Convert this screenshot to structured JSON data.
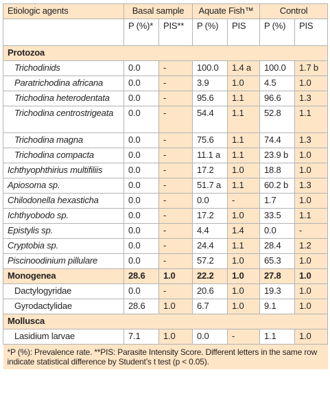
{
  "header": {
    "col0": "Etiologic agents",
    "groups": [
      "Basal sample",
      "Aquate Fish™",
      "Control"
    ],
    "sub": [
      "P (%)*",
      "PIS**",
      "P (%)",
      "PIS",
      "P (%)",
      "PIS"
    ]
  },
  "rows": [
    {
      "type": "cat",
      "label": "Protozoa"
    },
    {
      "type": "data",
      "label": "Trichodinids",
      "italic": true,
      "indent": true,
      "vals": [
        "0.0",
        "-",
        "100.0",
        "1.4 a",
        "100.0",
        "1.7 b"
      ]
    },
    {
      "type": "data",
      "label": "Paratrichodina africana",
      "italic": true,
      "indent": true,
      "vals": [
        "0.0",
        "-",
        "3.9",
        "1.0",
        "4.5",
        "1.0"
      ]
    },
    {
      "type": "data",
      "label": "Trichodina heterodentata",
      "italic": true,
      "indent": true,
      "vals": [
        "0.0",
        "-",
        "95.6",
        "1.1",
        "96.6",
        "1.3"
      ]
    },
    {
      "type": "data2",
      "label": "Trichodina centrostrigeata",
      "italic": true,
      "indent": true,
      "vals": [
        "0.0",
        "-",
        "54.4",
        "1.1",
        "52.8",
        "1.1"
      ]
    },
    {
      "type": "data",
      "label": "Trichodina magna",
      "italic": true,
      "indent": true,
      "vals": [
        "0.0",
        "-",
        "75.6",
        "1.1",
        "74.4",
        "1.3"
      ]
    },
    {
      "type": "data",
      "label": "Trichodina compacta",
      "italic": true,
      "indent": true,
      "vals": [
        "0.0",
        "-",
        "11.1 a",
        "1.1",
        "23.9 b",
        "1.0"
      ]
    },
    {
      "type": "data",
      "label": "Ichthyophthirius multifiliis",
      "italic": true,
      "indent": false,
      "vals": [
        "0.0",
        "-",
        "17.2",
        "1.0",
        "18.8",
        "1.0"
      ]
    },
    {
      "type": "data",
      "label": "Apiosoma sp.",
      "italic": true,
      "indent": false,
      "vals": [
        "0.0",
        "-",
        "51.7 a",
        "1.1",
        "60.2 b",
        "1.3"
      ]
    },
    {
      "type": "data",
      "label": "Chilodonella hexasticha",
      "italic": true,
      "indent": false,
      "vals": [
        "0.0",
        "-",
        "0.0",
        "-",
        "1.7",
        "1.0"
      ]
    },
    {
      "type": "data",
      "label": "Ichthyobodo sp.",
      "italic": true,
      "indent": false,
      "vals": [
        "0.0",
        "-",
        "17.2",
        "1.0",
        "33.5",
        "1.1"
      ]
    },
    {
      "type": "data",
      "label": "Epistylis sp.",
      "italic": true,
      "indent": false,
      "vals": [
        "0.0",
        "-",
        "4.4",
        "1.4",
        "0.0",
        "-"
      ]
    },
    {
      "type": "data",
      "label": "Cryptobia sp.",
      "italic": true,
      "indent": false,
      "vals": [
        "0.0",
        "-",
        "24.4",
        "1.1",
        "28.4",
        "1.2"
      ]
    },
    {
      "type": "data",
      "label": "Piscinoodinium pillulare",
      "italic": true,
      "indent": false,
      "vals": [
        "0.0",
        "-",
        "57.2",
        "1.0",
        "65.3",
        "1.0"
      ]
    },
    {
      "type": "catdata",
      "label": "Monogenea",
      "vals": [
        "28.6",
        "1.0",
        "22.2",
        "1.0",
        "27.8",
        "1.0"
      ]
    },
    {
      "type": "data",
      "label": "Dactylogyridae",
      "italic": false,
      "indent": true,
      "vals": [
        "0.0",
        "-",
        "20.6",
        "1.0",
        "19.3",
        "1.0"
      ]
    },
    {
      "type": "data",
      "label": "Gyrodactylidae",
      "italic": false,
      "indent": true,
      "vals": [
        "28.6",
        "1.0",
        "6.7",
        "1.0",
        "9.1",
        "1.0"
      ]
    },
    {
      "type": "cat",
      "label": "Mollusca"
    },
    {
      "type": "data",
      "label": "Lasidium larvae",
      "italic": false,
      "indent": true,
      "vals": [
        "7.1",
        "1.0",
        "0.0",
        "-",
        "1.1",
        "1.0"
      ]
    }
  ],
  "footnote": "*P (%): Prevalence rate. **PIS: Parasite Intensity Score. Different letters in the same row indicate statistical difference by Student’s t test (p < 0.05)."
}
